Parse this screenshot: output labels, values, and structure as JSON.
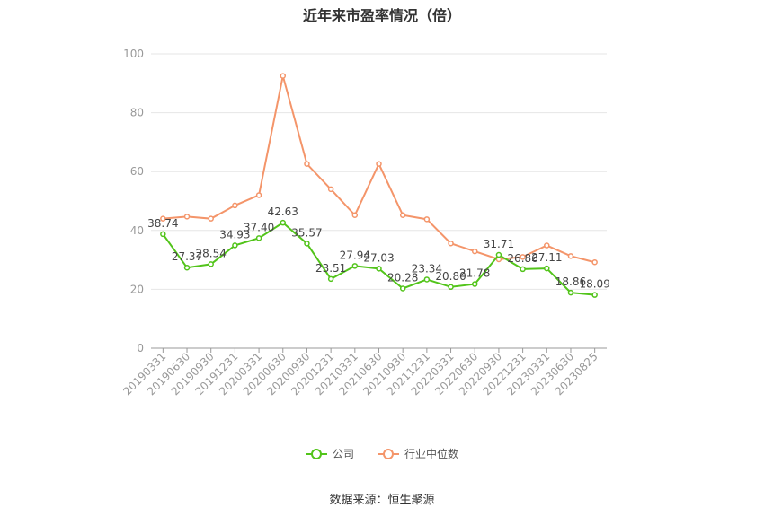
{
  "chart_data": {
    "type": "line",
    "title": "近年来市盈率情况（倍）",
    "categories": [
      "20190331",
      "20190630",
      "20190930",
      "20191231",
      "20200331",
      "20200630",
      "20200930",
      "20201231",
      "20210331",
      "20210630",
      "20210930",
      "20211231",
      "20220331",
      "20220630",
      "20220930",
      "20221231",
      "20230331",
      "20230630",
      "20230825"
    ],
    "ylim": [
      0,
      100
    ],
    "yticks": [
      0,
      20,
      40,
      60,
      80,
      100
    ],
    "grid": true,
    "legend_position": "bottom",
    "series": [
      {
        "name": "公司",
        "color": "#52c41a",
        "values": [
          38.74,
          27.37,
          28.54,
          34.93,
          37.4,
          42.63,
          35.57,
          23.51,
          27.94,
          27.03,
          20.28,
          23.34,
          20.8,
          21.78,
          31.71,
          26.86,
          27.11,
          18.86,
          18.09
        ],
        "labels": [
          "38.74",
          "27.37",
          "28.54",
          "34.93",
          "37.40",
          "42.63",
          "35.57",
          "23.51",
          "27.94",
          "27.03",
          "20.28",
          "23.34",
          "20.80",
          "21.78",
          "31.71",
          "26.86",
          "27.11",
          "18.86",
          "18.09"
        ]
      },
      {
        "name": "行业中位数",
        "color": "#f4956a",
        "values": [
          44.0,
          44.7,
          44.0,
          48.5,
          52.0,
          92.5,
          62.6,
          54.0,
          45.2,
          62.6,
          45.2,
          43.8,
          35.6,
          32.9,
          30.2,
          31.0,
          34.9,
          31.3,
          29.2
        ]
      }
    ]
  },
  "source_text": "数据来源：恒生聚源"
}
